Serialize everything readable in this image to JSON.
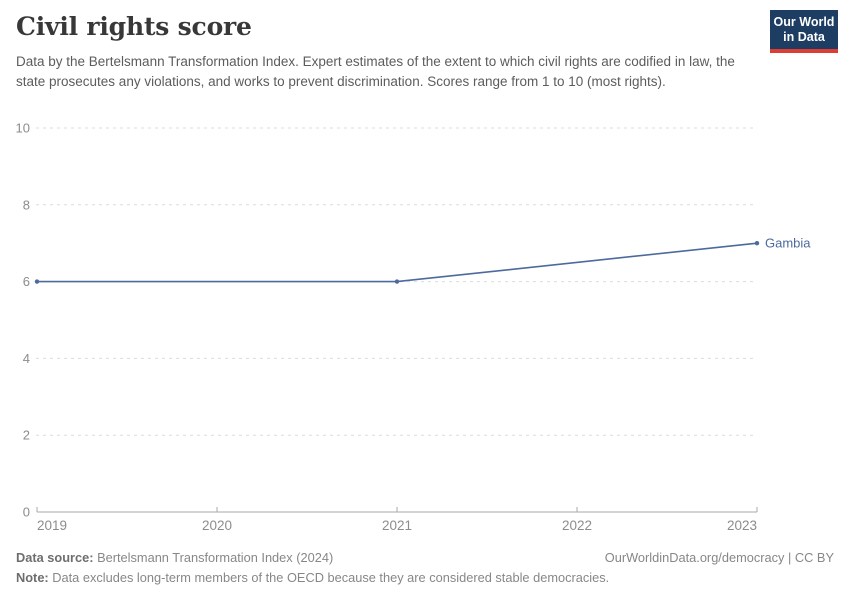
{
  "header": {
    "title": "Civil rights score",
    "subtitle": "Data by the Bertelsmann Transformation Index. Expert estimates of the extent to which civil rights are codified in law, the state prosecutes any violations, and works to prevent discrimination. Scores range from 1 to 10 (most rights).",
    "logo": {
      "line1": "Our World",
      "line2": "in Data"
    }
  },
  "chart_data": {
    "type": "line",
    "title": "Civil rights score",
    "series": [
      {
        "name": "Gambia",
        "color": "#4C6A9C",
        "x": [
          2019,
          2021,
          2023
        ],
        "values": [
          6,
          6,
          7
        ]
      }
    ],
    "entity_label": "Gambia",
    "x_ticks": [
      2019,
      2020,
      2021,
      2022,
      2023
    ],
    "y_ticks": [
      0,
      2,
      4,
      6,
      8,
      10
    ],
    "xlim": [
      2019,
      2023
    ],
    "ylim": [
      0,
      10
    ],
    "grid": "horizontal-dashed",
    "legend_position": "end-of-line-label"
  },
  "footer": {
    "source_label": "Data source:",
    "source_text": " Bertelsmann Transformation Index (2024)",
    "attribution": "OurWorldinData.org/democracy | CC BY",
    "note_label": "Note:",
    "note_text": " Data excludes long-term members of the OECD because they are considered stable democracies."
  },
  "colors": {
    "line": "#4C6A9C",
    "grid": "#dcdcdc",
    "axis_line": "#a8a8a8",
    "tick_label": "#8c8c8c",
    "title_text": "#383838",
    "subtitle_text": "#5c5c5c",
    "footer_text": "#878787",
    "logo_bg": "#1d3d63",
    "logo_stripe": "#dc3e35"
  }
}
